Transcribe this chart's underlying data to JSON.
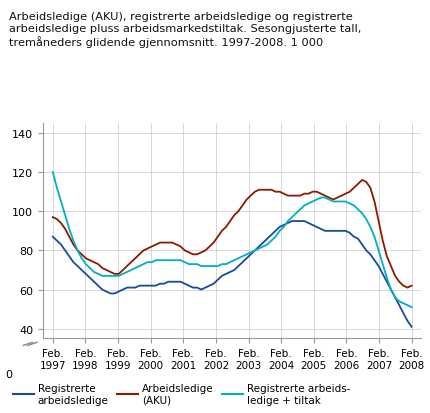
{
  "title_line1": "Arbeidsledige (AKU), registrerte arbeidsledige og registrerte",
  "title_line2": "arbeidsledige pluss arbeidsmarkedstiltak. Sesongjusterte tall,",
  "title_line3": "tremåneders glidende gjennomsnitt. 1997-2008. 1 000",
  "background_color": "#ffffff",
  "grid_color": "#c8c8c8",
  "ylim": [
    35,
    145
  ],
  "yticks": [
    40,
    60,
    80,
    100,
    120,
    140
  ],
  "ytick_labels": [
    "40",
    "60",
    "80",
    "100",
    "120",
    "140"
  ],
  "xtick_labels": [
    "Feb.\n1997",
    "Feb.\n1998",
    "Feb.\n1999",
    "Feb.\n2000",
    "Feb.\n2001",
    "Feb.\n2002",
    "Feb.\n2003",
    "Feb.\n2004",
    "Feb.\n2005",
    "Feb.\n2006",
    "Feb.\n2007",
    "Feb.\n2008"
  ],
  "legend": [
    {
      "label": "Registrerte\narbeidsledige",
      "color": "#1a4a9c"
    },
    {
      "label": "Arbeidsledige\n(AKU)",
      "color": "#8b1a00"
    },
    {
      "label": "Registrerte arbeids-\nledige + tiltak",
      "color": "#00b0c0"
    }
  ],
  "series": {
    "reg_arb": [
      87,
      85,
      83,
      80,
      77,
      74,
      72,
      70,
      68,
      66,
      64,
      62,
      60,
      59,
      58,
      58,
      59,
      60,
      61,
      61,
      61,
      62,
      62,
      62,
      62,
      62,
      63,
      63,
      64,
      64,
      64,
      64,
      63,
      62,
      61,
      61,
      60,
      61,
      62,
      63,
      65,
      67,
      68,
      69,
      70,
      72,
      74,
      76,
      78,
      80,
      82,
      84,
      86,
      88,
      90,
      92,
      93,
      94,
      95,
      95,
      95,
      95,
      94,
      93,
      92,
      91,
      90,
      90,
      90,
      90,
      90,
      90,
      89,
      87,
      86,
      83,
      80,
      78,
      75,
      72,
      68,
      64,
      60,
      56,
      52,
      48,
      44,
      41
    ],
    "aku": [
      97,
      96,
      94,
      91,
      87,
      83,
      80,
      78,
      76,
      75,
      74,
      73,
      71,
      70,
      69,
      68,
      68,
      70,
      72,
      74,
      76,
      78,
      80,
      81,
      82,
      83,
      84,
      84,
      84,
      84,
      83,
      82,
      80,
      79,
      78,
      78,
      79,
      80,
      82,
      84,
      87,
      90,
      92,
      95,
      98,
      100,
      103,
      106,
      108,
      110,
      111,
      111,
      111,
      111,
      110,
      110,
      109,
      108,
      108,
      108,
      108,
      109,
      109,
      110,
      110,
      109,
      108,
      107,
      106,
      107,
      108,
      109,
      110,
      112,
      114,
      116,
      115,
      112,
      105,
      95,
      85,
      77,
      72,
      67,
      64,
      62,
      61,
      62
    ],
    "reg_tiltak": [
      120,
      112,
      105,
      98,
      91,
      85,
      80,
      76,
      73,
      71,
      69,
      68,
      67,
      67,
      67,
      67,
      67,
      68,
      69,
      70,
      71,
      72,
      73,
      74,
      74,
      75,
      75,
      75,
      75,
      75,
      75,
      75,
      74,
      73,
      73,
      73,
      72,
      72,
      72,
      72,
      72,
      73,
      73,
      74,
      75,
      76,
      77,
      78,
      79,
      80,
      81,
      82,
      83,
      85,
      87,
      90,
      92,
      95,
      97,
      99,
      101,
      103,
      104,
      105,
      106,
      107,
      107,
      106,
      105,
      105,
      105,
      105,
      104,
      103,
      101,
      99,
      96,
      92,
      87,
      80,
      73,
      66,
      60,
      56,
      54,
      53,
      52,
      51
    ]
  }
}
